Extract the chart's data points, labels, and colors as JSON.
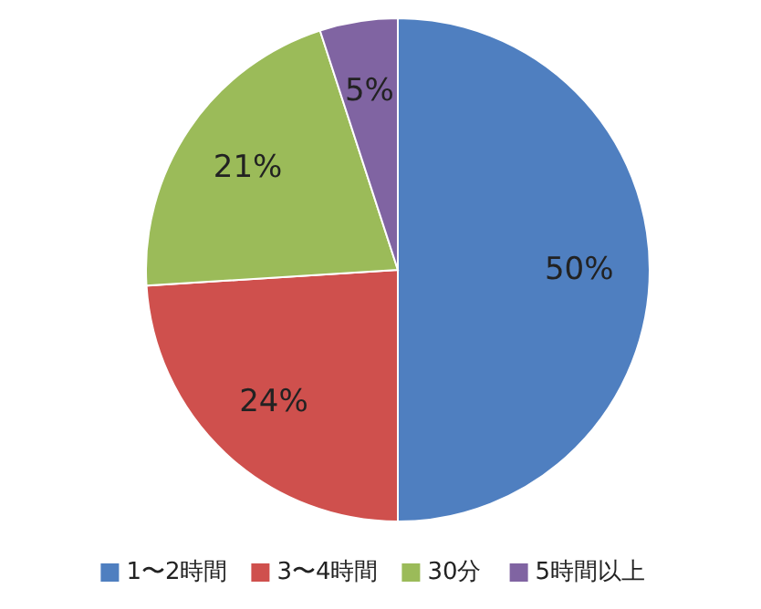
{
  "chart_data": {
    "type": "pie",
    "categories": [
      "1〜2時間",
      "3〜4時間",
      "30分",
      "5時間以上"
    ],
    "values": [
      50,
      24,
      21,
      5
    ],
    "colors": [
      "#4f7fc0",
      "#cf504d",
      "#9bbb59",
      "#8064a2"
    ],
    "value_labels": [
      "50%",
      "24%",
      "21%",
      "5%"
    ],
    "legend": "bottom"
  }
}
